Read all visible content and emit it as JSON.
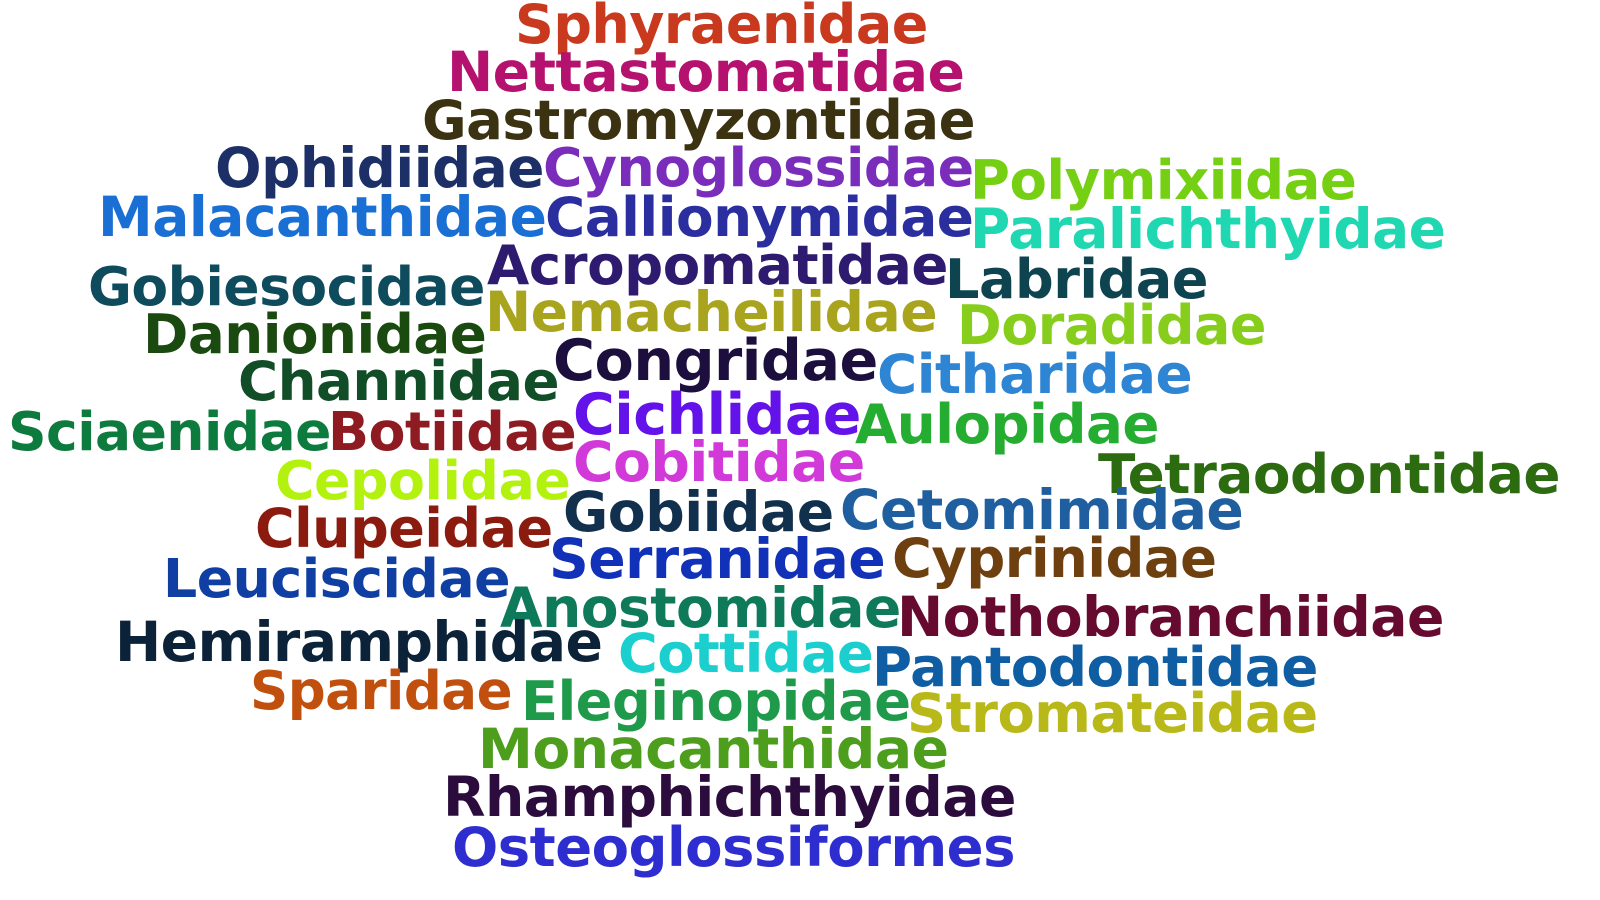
{
  "words": [
    {
      "text": "Sphyraenidae",
      "color": "#c8391e"
    },
    {
      "text": "Nettastomatidae",
      "color": "#b5116e"
    },
    {
      "text": "Gastromyzontidae",
      "color": "#3b3212"
    },
    {
      "text": "Ophidiidae",
      "color": "#1c2f66"
    },
    {
      "text": "Cynoglossidae",
      "color": "#7a2dbb"
    },
    {
      "text": "Polymixiidae",
      "color": "#75cf12"
    },
    {
      "text": "Malacanthidae",
      "color": "#1a6fd4"
    },
    {
      "text": "Callionymidae",
      "color": "#2a2e9e"
    },
    {
      "text": "Paralichthyidae",
      "color": "#1fd7b1"
    },
    {
      "text": "Acropomatidae",
      "color": "#2e1a6e"
    },
    {
      "text": "Gobiesocidae",
      "color": "#0d4b5d"
    },
    {
      "text": "Labridae",
      "color": "#0e4350"
    },
    {
      "text": "Nemacheilidae",
      "color": "#a8a41e"
    },
    {
      "text": "Danionidae",
      "color": "#1b4a10"
    },
    {
      "text": "Doradidae",
      "color": "#86cd1c"
    },
    {
      "text": "Congridae",
      "color": "#1c0f3e"
    },
    {
      "text": "Channidae",
      "color": "#114d26"
    },
    {
      "text": "Citharidae",
      "color": "#2d85d4"
    },
    {
      "text": "Sciaenidae",
      "color": "#0d7a3e"
    },
    {
      "text": "Botiidae",
      "color": "#8e1b22"
    },
    {
      "text": "Cichlidae",
      "color": "#6412ea"
    },
    {
      "text": "Aulopidae",
      "color": "#25ad31"
    },
    {
      "text": "Cobitidae",
      "color": "#d13ad9"
    },
    {
      "text": "Cepolidae",
      "color": "#b3f20f"
    },
    {
      "text": "Tetraodontidae",
      "color": "#2c6b10"
    },
    {
      "text": "Clupeidae",
      "color": "#8a1b0e"
    },
    {
      "text": "Gobiidae",
      "color": "#11304d"
    },
    {
      "text": "Cetomimidae",
      "color": "#1f5fa0"
    },
    {
      "text": "Serranidae",
      "color": "#1132b8"
    },
    {
      "text": "Cyprinidae",
      "color": "#6e3f0f"
    },
    {
      "text": "Leuciscidae",
      "color": "#0f3fa2"
    },
    {
      "text": "Anostomidae",
      "color": "#0f7a5a"
    },
    {
      "text": "Nothobranchiidae",
      "color": "#660a30"
    },
    {
      "text": "Hemiramphidae",
      "color": "#0b2238"
    },
    {
      "text": "Cottidae",
      "color": "#1ccfcf"
    },
    {
      "text": "Pantodontidae",
      "color": "#0f5ea3"
    },
    {
      "text": "Sparidae",
      "color": "#c1500f"
    },
    {
      "text": "Eleginopidae",
      "color": "#1f9a4a"
    },
    {
      "text": "Stromateidae",
      "color": "#b8b818"
    },
    {
      "text": "Monacanthidae",
      "color": "#4e9e1e"
    },
    {
      "text": "Rhamphichthyidae",
      "color": "#2c0c3d"
    },
    {
      "text": "Osteoglossiformes",
      "color": "#2e2ed0"
    }
  ]
}
